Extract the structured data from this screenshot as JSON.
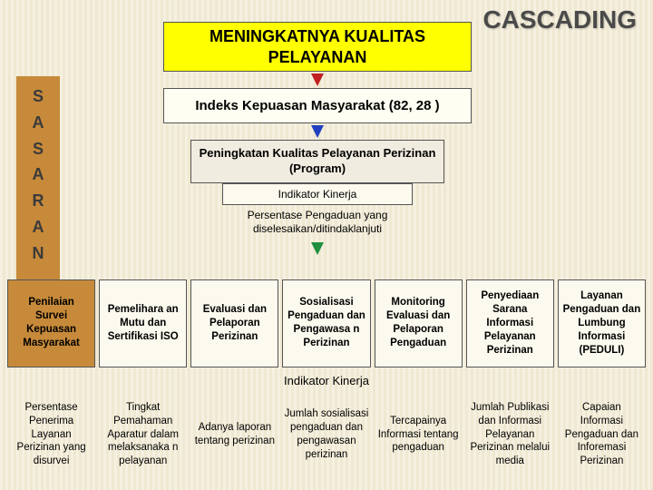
{
  "title": "CASCADING",
  "flow": {
    "n1": "MENINGKATNYA KUALITAS PELAYANAN",
    "n2": "Indeks Kepuasan Masyarakat  (82, 28 )",
    "n3": "Peningkatan Kualitas Pelayanan Perizinan (Program)",
    "n4": "Indikator Kinerja",
    "n5": "Persentase Pengaduan yang diselesaikan/ditindaklanjuti"
  },
  "sidebar": [
    "S",
    "A",
    "S",
    "A",
    "R",
    "A",
    "N"
  ],
  "topRow": [
    "Penilaian Survei Kepuasan Masyarakat",
    "Pemelihara an Mutu dan Sertifikasi ISO",
    "Evaluasi dan Pelaporan Perizinan",
    "Sosialisasi Pengaduan dan Pengawasa n Perizinan",
    "Monitoring Evaluasi dan Pelaporan Pengaduan",
    "Penyediaan Sarana Informasi Pelayanan Perizinan",
    "Layanan Pengaduan dan Lumbung Informasi (PEDULI)"
  ],
  "midLabel": "Indikator Kinerja",
  "botRow": [
    "Persentase Penerima Layanan Perizinan yang disurvei",
    "Tingkat Pemahaman Aparatur dalam melaksanaka n pelayanan",
    "Adanya laporan tentang perizinan",
    "Jumlah sosialisasi pengaduan dan pengawasan perizinan",
    "Tercapainya Informasi tentang pengaduan",
    "Jumlah Publikasi dan Informasi Pelayanan Perizinan melalui media",
    "Capaian Informasi Pengaduan dan Inforemasi Perizinan"
  ],
  "colors": {
    "sidebar": "#c78a3a",
    "highlight": "#ffff00",
    "bgLight": "#f5f0e0",
    "bgDark": "#efe8d2"
  }
}
